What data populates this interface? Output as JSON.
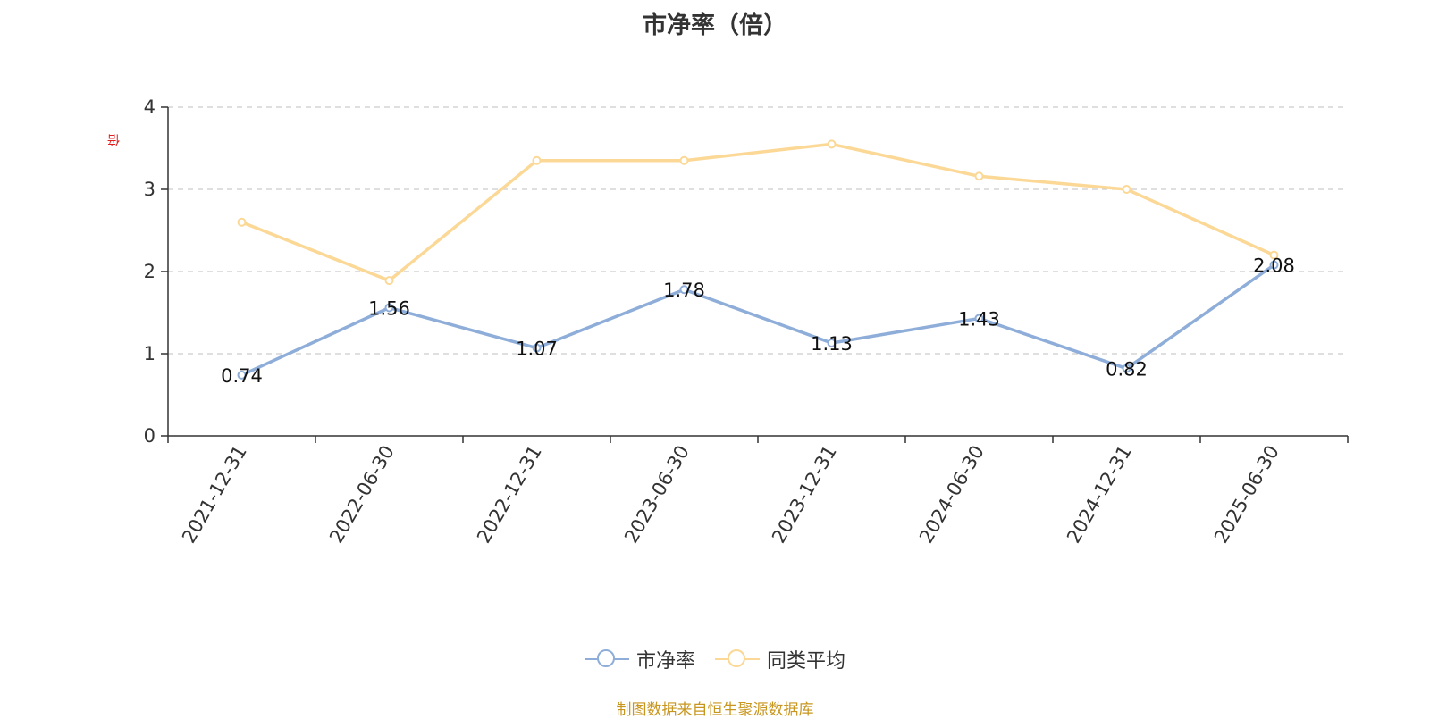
{
  "chart_data": {
    "type": "line",
    "title": "市净率（倍）",
    "ylabel": "倍",
    "ylim": [
      0,
      4
    ],
    "yticks": [
      0,
      1,
      2,
      3,
      4
    ],
    "grid": true,
    "legend_position": "bottom",
    "categories": [
      "2021-12-31",
      "2022-06-30",
      "2022-12-31",
      "2023-06-30",
      "2023-12-31",
      "2024-06-30",
      "2024-12-31",
      "2025-06-30"
    ],
    "series": [
      {
        "name": "市净率",
        "color": "#8eaed9",
        "values": [
          0.74,
          1.56,
          1.07,
          1.78,
          1.13,
          1.43,
          0.82,
          2.08
        ],
        "show_labels": true
      },
      {
        "name": "同类平均",
        "color": "#fbd896",
        "values": [
          2.6,
          1.89,
          3.35,
          3.35,
          3.55,
          3.16,
          3.0,
          2.2
        ],
        "show_labels": false
      }
    ]
  },
  "footer": {
    "source": "制图数据来自恒生聚源数据库"
  }
}
